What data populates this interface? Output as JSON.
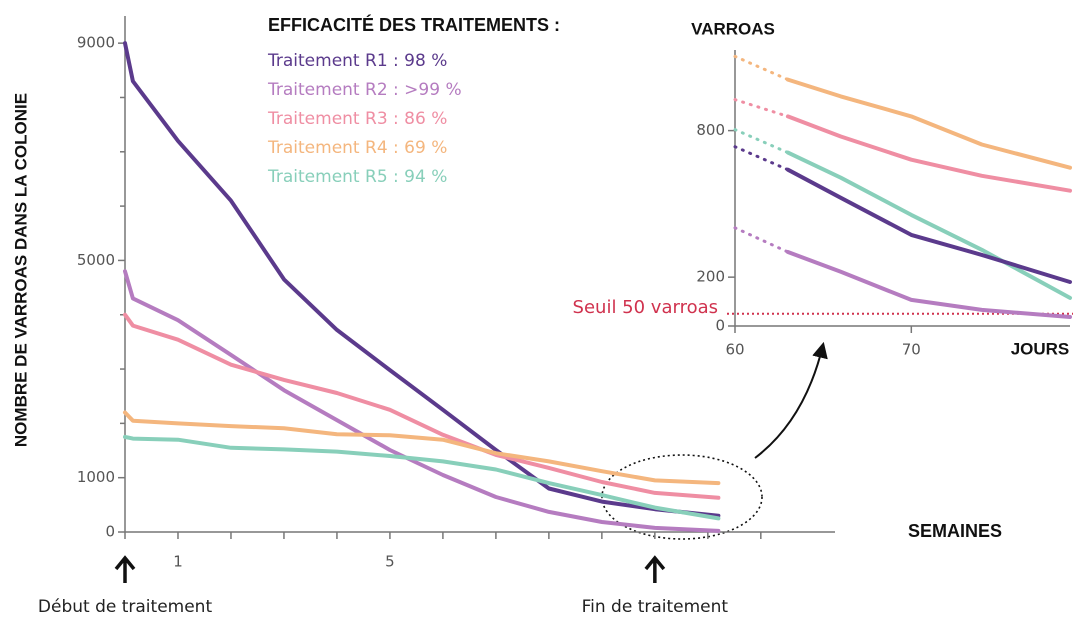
{
  "chart_data": [
    {
      "type": "line",
      "legend_title": "EFFICACITÉ DES TRAITEMENTS :",
      "x_label": "SEMAINES",
      "y_label": "NOMBRE DE VARROAS DANS LA COLONIE",
      "x": [
        0,
        0.15,
        1,
        2,
        3,
        4,
        5,
        6,
        7,
        8,
        9,
        10,
        11.2
      ],
      "series": [
        {
          "name": "Traitement R1 : 98 %",
          "color": "#5b3a8c",
          "values": [
            9000,
            8300,
            7200,
            6100,
            4650,
            3720,
            2980,
            2250,
            1510,
            800,
            560,
            420,
            300
          ]
        },
        {
          "name": "Traitement R2 : >99 %",
          "color": "#b57cc0",
          "values": [
            4800,
            4300,
            3900,
            3260,
            2610,
            2060,
            1510,
            1050,
            645,
            370,
            185,
            75,
            20
          ]
        },
        {
          "name": "Traitement R3 : 86 %",
          "color": "#ef8ea3",
          "values": [
            4000,
            3800,
            3540,
            3080,
            2800,
            2560,
            2250,
            1790,
            1420,
            1180,
            920,
            720,
            630
          ]
        },
        {
          "name": "Traitement R4 : 69 %",
          "color": "#f4b67e",
          "values": [
            2200,
            2050,
            2000,
            1950,
            1910,
            1800,
            1780,
            1700,
            1450,
            1300,
            1120,
            950,
            900
          ]
        },
        {
          "name": "Traitement R5 : 94 %",
          "color": "#88cfba",
          "values": [
            1750,
            1720,
            1700,
            1550,
            1520,
            1480,
            1400,
            1300,
            1150,
            900,
            680,
            450,
            250
          ]
        }
      ],
      "xlim": [
        0,
        13.4
      ],
      "ylim": [
        0,
        9500
      ],
      "xticks": [
        1,
        5
      ],
      "xminor_ticks": [
        0,
        2,
        3,
        4,
        6,
        7,
        8,
        9,
        10,
        11,
        12
      ],
      "yticks": [
        0,
        1000,
        5000,
        9000
      ],
      "yminor_ticks": [
        2000,
        3000,
        4000,
        6000,
        7000,
        8000
      ],
      "annotations": [
        {
          "text": "Début de traitement",
          "x": 0
        },
        {
          "text": "Fin de traitement",
          "x": 10
        }
      ]
    },
    {
      "type": "line",
      "y_label": "VARROAS",
      "x_label": "JOURS",
      "x": [
        60,
        63,
        66,
        70,
        74,
        79
      ],
      "series": [
        {
          "color": "#f4b67e",
          "values": [
            1104,
            1009,
            940,
            858,
            743,
            648
          ]
        },
        {
          "color": "#ef8ea3",
          "values": [
            927,
            858,
            776,
            681,
            615,
            554
          ]
        },
        {
          "color": "#88cfba",
          "values": [
            804,
            710,
            607,
            455,
            312,
            115
          ]
        },
        {
          "color": "#5b3a8c",
          "values": [
            734,
            640,
            525,
            373,
            291,
            180
          ]
        },
        {
          "color": "#b57cc0",
          "values": [
            402,
            303,
            222,
            107,
            66,
            37
          ]
        }
      ],
      "xlim": [
        60,
        79
      ],
      "ylim": [
        0,
        1130
      ],
      "xticks": [
        60,
        70
      ],
      "yticks": [
        0,
        200,
        800
      ],
      "threshold": {
        "value": 50,
        "label": "Seuil 50 varroas",
        "color": "#d0324e"
      }
    }
  ]
}
